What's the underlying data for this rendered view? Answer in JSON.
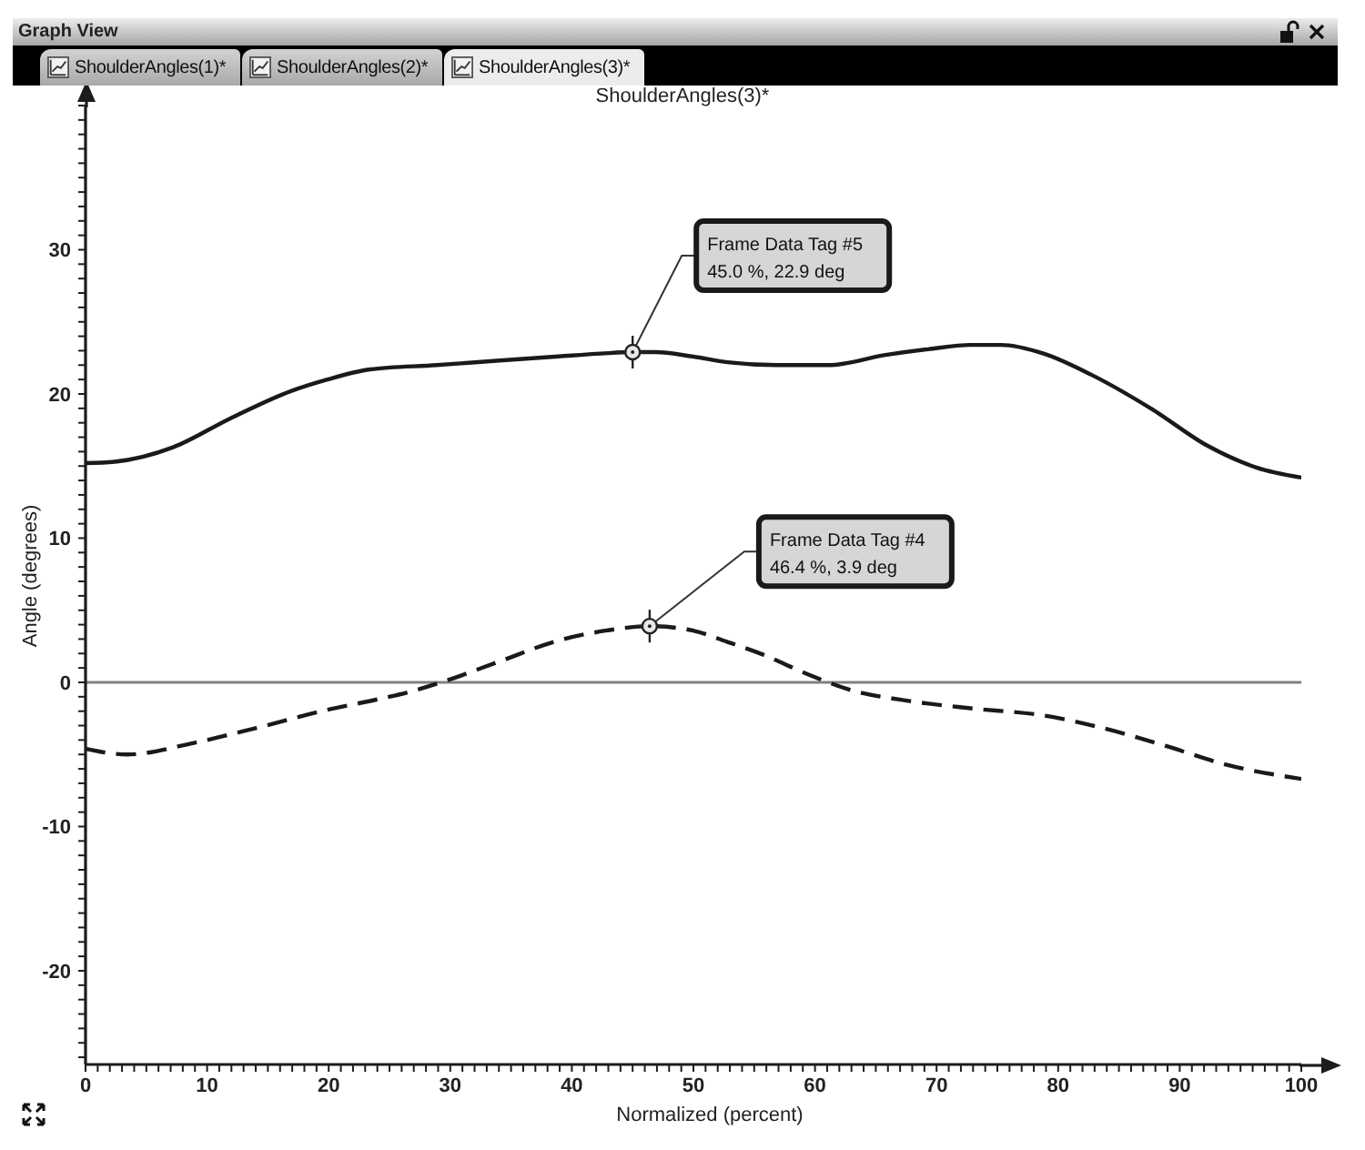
{
  "chart_data": {
    "type": "line",
    "title": "ShoulderAngles(3)*",
    "xlabel": "Normalized (percent)",
    "ylabel": "Angle (degrees)",
    "xlim": [
      0,
      100
    ],
    "xticks": [
      0,
      {
        "value": 1,
        "label": null
      },
      {
        "value": 2,
        "label": null
      },
      {
        "value": 3,
        "label": null
      },
      {
        "value": 4,
        "label": null
      },
      {
        "value": 5,
        "label": null
      },
      {
        "value": 6,
        "label": null
      },
      {
        "value": 7,
        "label": null
      },
      {
        "value": 8,
        "label": null
      },
      {
        "value": 9,
        "label": null
      },
      10,
      {
        "value": 11,
        "label": null
      },
      {
        "value": 12,
        "label": null
      },
      {
        "value": 13,
        "label": null
      },
      {
        "value": 14,
        "label": null
      },
      {
        "value": 15,
        "label": null
      },
      {
        "value": 16,
        "label": null
      },
      {
        "value": 17,
        "label": null
      },
      {
        "value": 18,
        "label": null
      },
      {
        "value": 19,
        "label": null
      },
      20,
      {
        "value": 21,
        "label": null
      },
      {
        "value": 22,
        "label": null
      },
      {
        "value": 23,
        "label": null
      },
      {
        "value": 24,
        "label": null
      },
      {
        "value": 25,
        "label": null
      },
      {
        "value": 26,
        "label": null
      },
      {
        "value": 27,
        "label": null
      },
      {
        "value": 28,
        "label": null
      },
      {
        "value": 29,
        "label": null
      },
      30,
      {
        "value": 31,
        "label": null
      },
      {
        "value": 32,
        "label": null
      },
      {
        "value": 33,
        "label": null
      },
      {
        "value": 34,
        "label": null
      },
      {
        "value": 35,
        "label": null
      },
      {
        "value": 36,
        "label": null
      },
      {
        "value": 37,
        "label": null
      },
      {
        "value": 38,
        "label": null
      },
      {
        "value": 39,
        "label": null
      },
      40,
      {
        "value": 41,
        "label": null
      },
      {
        "value": 42,
        "label": null
      },
      {
        "value": 43,
        "label": null
      },
      {
        "value": 44,
        "label": null
      },
      {
        "value": 45,
        "label": null
      },
      {
        "value": 46,
        "label": null
      },
      {
        "value": 47,
        "label": null
      },
      {
        "value": 48,
        "label": null
      },
      {
        "value": 49,
        "label": null
      },
      50,
      {
        "value": 51,
        "label": null
      },
      {
        "value": 52,
        "label": null
      },
      {
        "value": 53,
        "label": null
      },
      {
        "value": 54,
        "label": null
      },
      {
        "value": 55,
        "label": null
      },
      {
        "value": 56,
        "label": null
      },
      {
        "value": 57,
        "label": null
      },
      {
        "value": 58,
        "label": null
      },
      {
        "value": 59,
        "label": null
      },
      60,
      {
        "value": 61,
        "label": null
      },
      {
        "value": 62,
        "label": null
      },
      {
        "value": 63,
        "label": null
      },
      {
        "value": 64,
        "label": null
      },
      {
        "value": 65,
        "label": null
      },
      {
        "value": 66,
        "label": null
      },
      {
        "value": 67,
        "label": null
      },
      {
        "value": 68,
        "label": null
      },
      {
        "value": 69,
        "label": null
      },
      70,
      {
        "value": 71,
        "label": null
      },
      {
        "value": 72,
        "label": null
      },
      {
        "value": 73,
        "label": null
      },
      {
        "value": 74,
        "label": null
      },
      {
        "value": 75,
        "label": null
      },
      {
        "value": 76,
        "label": null
      },
      {
        "value": 77,
        "label": null
      },
      {
        "value": 78,
        "label": null
      },
      {
        "value": 79,
        "label": null
      },
      80,
      {
        "value": 81,
        "label": null
      },
      {
        "value": 82,
        "label": null
      },
      {
        "value": 83,
        "label": null
      },
      {
        "value": 84,
        "label": null
      },
      {
        "value": 85,
        "label": null
      },
      {
        "value": 86,
        "label": null
      },
      {
        "value": 87,
        "label": null
      },
      {
        "value": 88,
        "label": null
      },
      {
        "value": 89,
        "label": null
      },
      90,
      {
        "value": 91,
        "label": null
      },
      {
        "value": 92,
        "label": null
      },
      {
        "value": 93,
        "label": null
      },
      {
        "value": 94,
        "label": null
      },
      {
        "value": 95,
        "label": null
      },
      {
        "value": 96,
        "label": null
      },
      {
        "value": 97,
        "label": null
      },
      {
        "value": 98,
        "label": null
      },
      {
        "value": 99,
        "label": null
      },
      100
    ],
    "ylim": [
      -26.5,
      40
    ],
    "yticks": [
      {
        "value": -26,
        "label": null
      },
      {
        "value": -25,
        "label": null
      },
      {
        "value": -24,
        "label": null
      },
      {
        "value": -23,
        "label": null
      },
      {
        "value": -22,
        "label": null
      },
      {
        "value": -21,
        "label": null
      },
      -20,
      {
        "value": -19,
        "label": null
      },
      {
        "value": -18,
        "label": null
      },
      {
        "value": -17,
        "label": null
      },
      {
        "value": -16,
        "label": null
      },
      {
        "value": -15,
        "label": null
      },
      {
        "value": -14,
        "label": null
      },
      {
        "value": -13,
        "label": null
      },
      {
        "value": -12,
        "label": null
      },
      {
        "value": -11,
        "label": null
      },
      -10,
      {
        "value": -9,
        "label": null
      },
      {
        "value": -8,
        "label": null
      },
      {
        "value": -7,
        "label": null
      },
      {
        "value": -6,
        "label": null
      },
      {
        "value": -5,
        "label": null
      },
      {
        "value": -4,
        "label": null
      },
      {
        "value": -3,
        "label": null
      },
      {
        "value": -2,
        "label": null
      },
      {
        "value": -1,
        "label": null
      },
      0,
      {
        "value": 1,
        "label": null
      },
      {
        "value": 2,
        "label": null
      },
      {
        "value": 3,
        "label": null
      },
      {
        "value": 4,
        "label": null
      },
      {
        "value": 5,
        "label": null
      },
      {
        "value": 6,
        "label": null
      },
      {
        "value": 7,
        "label": null
      },
      {
        "value": 8,
        "label": null
      },
      {
        "value": 9,
        "label": null
      },
      10,
      {
        "value": 11,
        "label": null
      },
      {
        "value": 12,
        "label": null
      },
      {
        "value": 13,
        "label": null
      },
      {
        "value": 14,
        "label": null
      },
      {
        "value": 15,
        "label": null
      },
      {
        "value": 16,
        "label": null
      },
      {
        "value": 17,
        "label": null
      },
      {
        "value": 18,
        "label": null
      },
      {
        "value": 19,
        "label": null
      },
      20,
      {
        "value": 21,
        "label": null
      },
      {
        "value": 22,
        "label": null
      },
      {
        "value": 23,
        "label": null
      },
      {
        "value": 24,
        "label": null
      },
      {
        "value": 25,
        "label": null
      },
      {
        "value": 26,
        "label": null
      },
      {
        "value": 27,
        "label": null
      },
      {
        "value": 28,
        "label": null
      },
      {
        "value": 29,
        "label": null
      },
      30,
      {
        "value": 31,
        "label": null
      },
      {
        "value": 32,
        "label": null
      },
      {
        "value": 33,
        "label": null
      },
      {
        "value": 34,
        "label": null
      },
      {
        "value": 35,
        "label": null
      },
      {
        "value": 36,
        "label": null
      },
      {
        "value": 37,
        "label": null
      },
      {
        "value": 38,
        "label": null
      },
      {
        "value": 39,
        "label": null
      },
      {
        "value": 40,
        "label": null
      }
    ],
    "marker": "none",
    "ref_lines": [
      {
        "axis": "y",
        "value": 0,
        "color": "#808080"
      }
    ],
    "series": [
      {
        "color": "#1a1a1a",
        "line_style": "solid",
        "x": [
          0,
          2.4,
          7.2,
          11.9,
          16.9,
          19.9,
          23.4,
          28.9,
          33.8,
          38.9,
          42.4,
          45,
          46.9,
          49.9,
          52.8,
          56.8,
          61.1,
          65.8,
          69.3,
          72.8,
          75.3,
          78.8,
          82.8,
          87.8,
          92.3,
          96.3,
          100
        ],
        "values": [
          15.2,
          15.3,
          16.3,
          18.3,
          20.2,
          21.0,
          21.7,
          22.0,
          22.3,
          22.6,
          22.8,
          22.9,
          22.9,
          22.6,
          22.2,
          22.0,
          22.0,
          22.7,
          23.1,
          23.4,
          23.4,
          22.8,
          21.3,
          18.9,
          16.4,
          14.9,
          14.2
        ]
      },
      {
        "color": "#1a1a1a",
        "line_style": "dashed",
        "x": [
          0,
          3.4,
          8.9,
          13.9,
          19.9,
          23.9,
          26.9,
          29.6,
          33.9,
          38.9,
          42.9,
          46.4,
          49.9,
          52.8,
          55.8,
          59.3,
          62.8,
          67.8,
          72.8,
          78.8,
          83.8,
          88.8,
          93.8,
          100
        ],
        "values": [
          -4.6,
          -5.0,
          -4.2,
          -3.2,
          -1.9,
          -1.2,
          -0.6,
          0.1,
          1.4,
          2.9,
          3.6,
          3.9,
          3.6,
          2.8,
          1.9,
          0.6,
          -0.5,
          -1.3,
          -1.8,
          -2.3,
          -3.2,
          -4.4,
          -5.7,
          -6.7
        ]
      }
    ],
    "annotations": [
      "Graph View",
      "ShoulderAngles(1)*",
      "ShoulderAngles(2)*",
      "ShoulderAngles(3)*",
      {
        "text": "Frame Data Tag #5\n45.0 %, 22.9 deg",
        "x": 45.0,
        "y": 22.9
      },
      {
        "text": "Frame Data Tag #4\n46.4 %, 3.9 deg",
        "x": 46.4,
        "y": 3.9
      }
    ]
  }
}
